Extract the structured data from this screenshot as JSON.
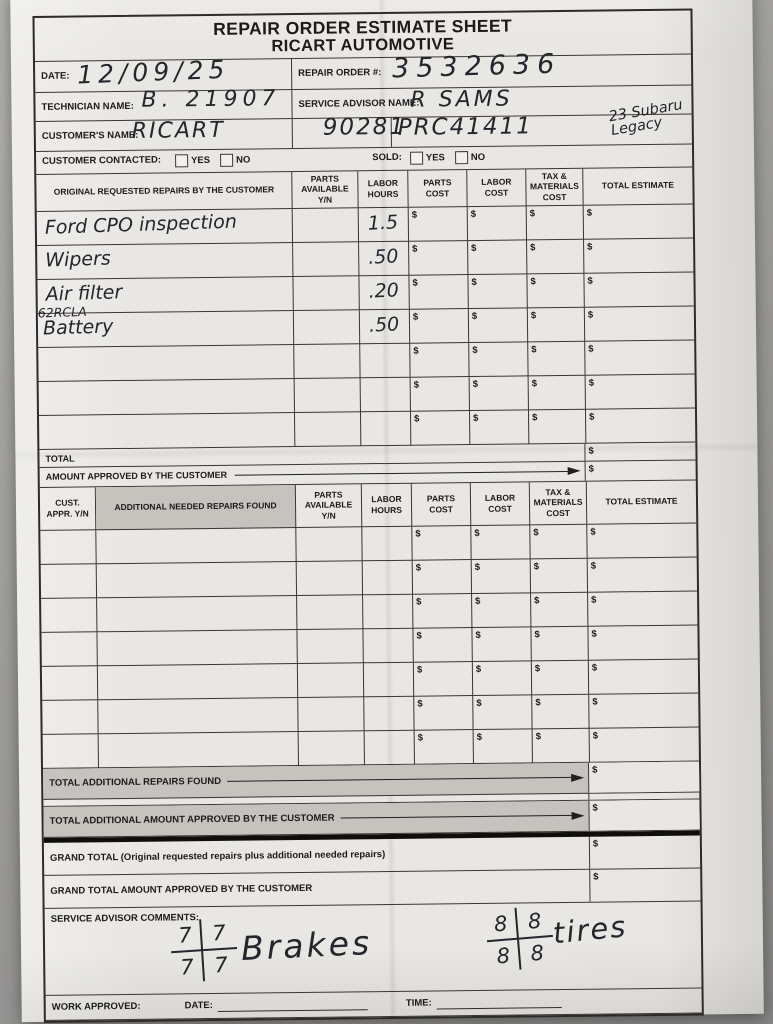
{
  "photo": {
    "backdrop_color": "#9c9b99",
    "paper_color": "#e9e7e4",
    "printed_ink_color": "#1d1b19",
    "pen_ink_color": "#26252c",
    "shaded_row_color": "#c6c3bf"
  },
  "header": {
    "title_line1": "REPAIR ORDER ESTIMATE SHEET",
    "title_line2": "RICART AUTOMOTIVE"
  },
  "info": {
    "date_label": "DATE:",
    "date_value": "12/09/25",
    "repair_order_label": "REPAIR ORDER #:",
    "repair_order_value": "3532636",
    "technician_label": "TECHNICIAN NAME:",
    "technician_value": "B. 21907",
    "service_advisor_label": "SERVICE ADVISOR NAME:",
    "service_advisor_value": "R SAMS",
    "customer_label": "CUSTOMER'S NAME:",
    "customer_value": "RICART",
    "stock_number_value": "90281",
    "reference_code_value": "PRC41411",
    "vehicle_note_line1": "23 Subaru",
    "vehicle_note_line2": "Legacy",
    "customer_contacted_label": "CUSTOMER CONTACTED:",
    "sold_label": "SOLD:",
    "yes_label": "YES",
    "no_label": "NO",
    "customer_contacted_yes_checked": false,
    "customer_contacted_no_checked": false,
    "sold_yes_checked": false,
    "sold_no_checked": false
  },
  "misc": {
    "dollar_sign": "$"
  },
  "original_repairs": {
    "headers": [
      "ORIGINAL REQUESTED REPAIRS BY THE CUSTOMER",
      "PARTS AVAILABLE Y/N",
      "LABOR HOURS",
      "PARTS COST",
      "LABOR COST",
      "TAX & MATERIALS COST",
      "TOTAL ESTIMATE"
    ],
    "rows": [
      {
        "repair_line1": "Ford CPO inspection",
        "repair_line2": "",
        "labor_hours": "1.5"
      },
      {
        "repair_line1": "Wipers",
        "repair_line2": "",
        "labor_hours": ".50"
      },
      {
        "repair_line1": "Air filter",
        "repair_line2": "",
        "labor_hours": ".20"
      },
      {
        "repair_line1": "62RCLA",
        "repair_line2": "Battery",
        "labor_hours": ".50"
      },
      {
        "repair_line1": "",
        "repair_line2": "",
        "labor_hours": ""
      },
      {
        "repair_line1": "",
        "repair_line2": "",
        "labor_hours": ""
      },
      {
        "repair_line1": "",
        "repair_line2": "",
        "labor_hours": ""
      }
    ],
    "total_label": "TOTAL",
    "amount_approved_label": "AMOUNT APPROVED BY THE CUSTOMER"
  },
  "additional_repairs": {
    "headers": [
      "CUST. APPR. Y/N",
      "ADDITIONAL NEEDED REPAIRS FOUND",
      "PARTS AVAILABLE Y/N",
      "LABOR HOURS",
      "PARTS COST",
      "LABOR COST",
      "TAX & MATERIALS COST",
      "TOTAL ESTIMATE"
    ],
    "empty_row_count": 7,
    "total_found_label": "TOTAL ADDITIONAL REPAIRS FOUND",
    "total_approved_label": "TOTAL ADDITIONAL AMOUNT APPROVED BY THE CUSTOMER"
  },
  "grand_totals": {
    "grand_total_label": "GRAND TOTAL (Original requested repairs plus additional needed repairs)",
    "grand_total_approved_label": "GRAND TOTAL AMOUNT APPROVED BY THE CUSTOMER"
  },
  "comments": {
    "label": "SERVICE ADVISOR COMMENTS:",
    "brakes_grid": [
      "7",
      "7",
      "7",
      "7"
    ],
    "brakes_label": "Brakes",
    "tires_grid": [
      "8",
      "8",
      "8",
      "8"
    ],
    "tires_label": "tires"
  },
  "footer": {
    "work_approved_label": "WORK APPROVED:",
    "date_label": "DATE:",
    "time_label": "TIME:"
  }
}
